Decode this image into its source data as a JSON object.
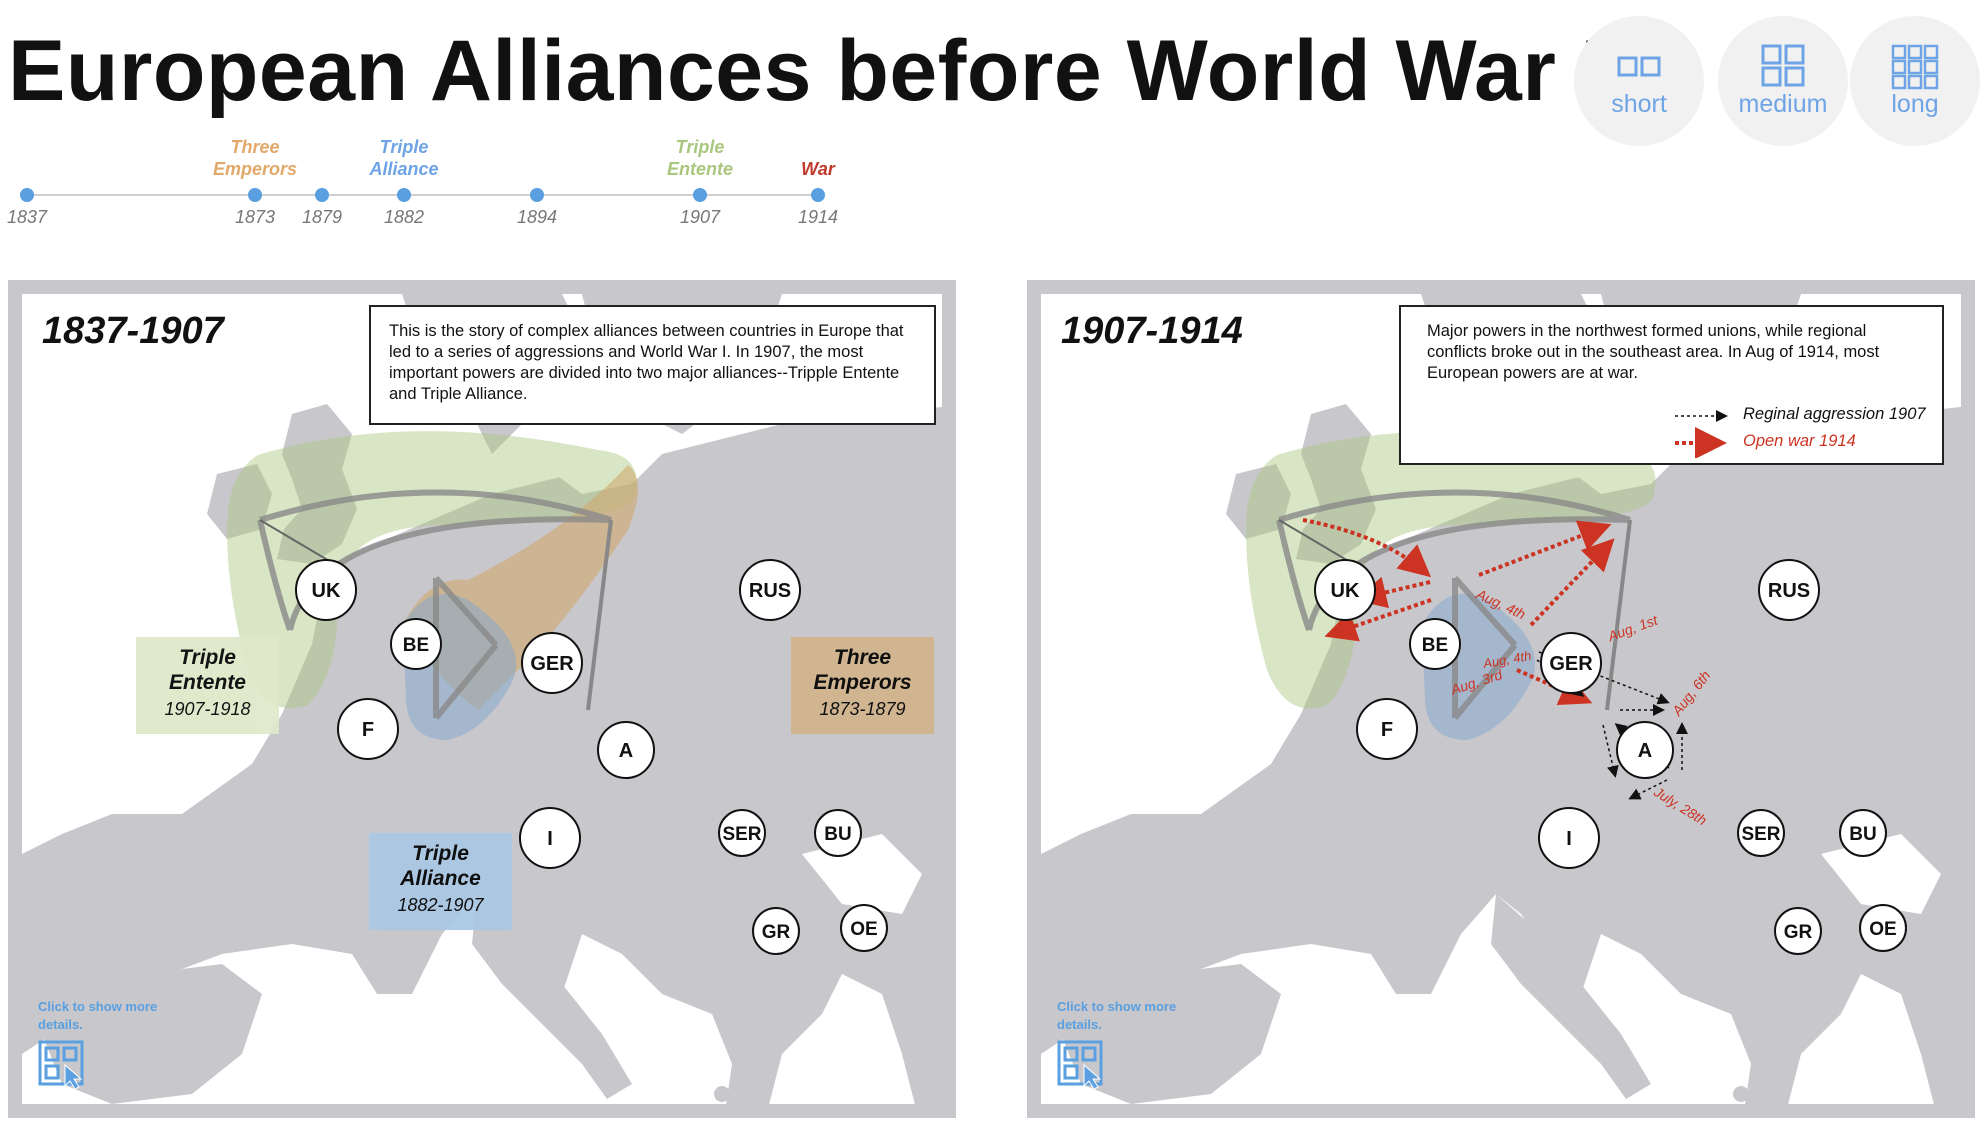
{
  "title": "European Alliances before World War I",
  "length_buttons": [
    {
      "label": "short",
      "icon": "two-squares-icon"
    },
    {
      "label": "medium",
      "icon": "four-squares-icon"
    },
    {
      "label": "long",
      "icon": "nine-squares-icon"
    }
  ],
  "timeline": {
    "points": [
      {
        "year": "1837",
        "label": "",
        "color": ""
      },
      {
        "year": "1873",
        "label": "Three\nEmperors",
        "color": "#e2a96a"
      },
      {
        "year": "1879",
        "label": "",
        "color": ""
      },
      {
        "year": "1882",
        "label": "Triple\nAlliance",
        "color": "#6ea4e6"
      },
      {
        "year": "1894",
        "label": "",
        "color": ""
      },
      {
        "year": "1907",
        "label": "Triple\nEntente",
        "color": "#a9c77e"
      },
      {
        "year": "1914",
        "label": "War",
        "color": "#c0392b"
      }
    ]
  },
  "left_panel": {
    "title": "1837-1907",
    "description": "This is the story of complex alliances between countries in Europe that led to a series of aggressions and World War I. In 1907, the most important powers are divided into two major alliances--Tripple Entente and Triple Alliance.",
    "alliances": [
      {
        "name": "Triple\nEntente",
        "years": "1907-1918",
        "color": "#dfe8c9"
      },
      {
        "name": "Three\nEmperors",
        "years": "1873-1879",
        "color": "#d2b48c"
      },
      {
        "name": "Triple\nAlliance",
        "years": "1882-1907",
        "color": "#a9c8e4"
      }
    ],
    "click_hint": "Click to show more details."
  },
  "right_panel": {
    "title": "1907-1914",
    "description": "Major powers in the northwest formed unions, while regional conflicts broke out in the southeast area. In Aug of 1914, most European powers are at war.",
    "legend": [
      {
        "label": "Reginal aggression 1907",
        "color": "#111111"
      },
      {
        "label": "Open war 1914",
        "color": "#cc3322"
      }
    ],
    "war_labels": [
      "Aug, 4th",
      "Aug, 4th",
      "Aug, 3rd",
      "Aug, 1st",
      "Aug, 6th",
      "July, 28th"
    ],
    "click_hint": "Click to show more details."
  },
  "countries": [
    "UK",
    "BE",
    "F",
    "GER",
    "A",
    "I",
    "RUS",
    "SER",
    "BU",
    "GR",
    "OE"
  ],
  "colors": {
    "accent": "#6ea4e6",
    "war": "#cc3322",
    "map_land": "#c8c7cb",
    "background": "#ffffff"
  }
}
